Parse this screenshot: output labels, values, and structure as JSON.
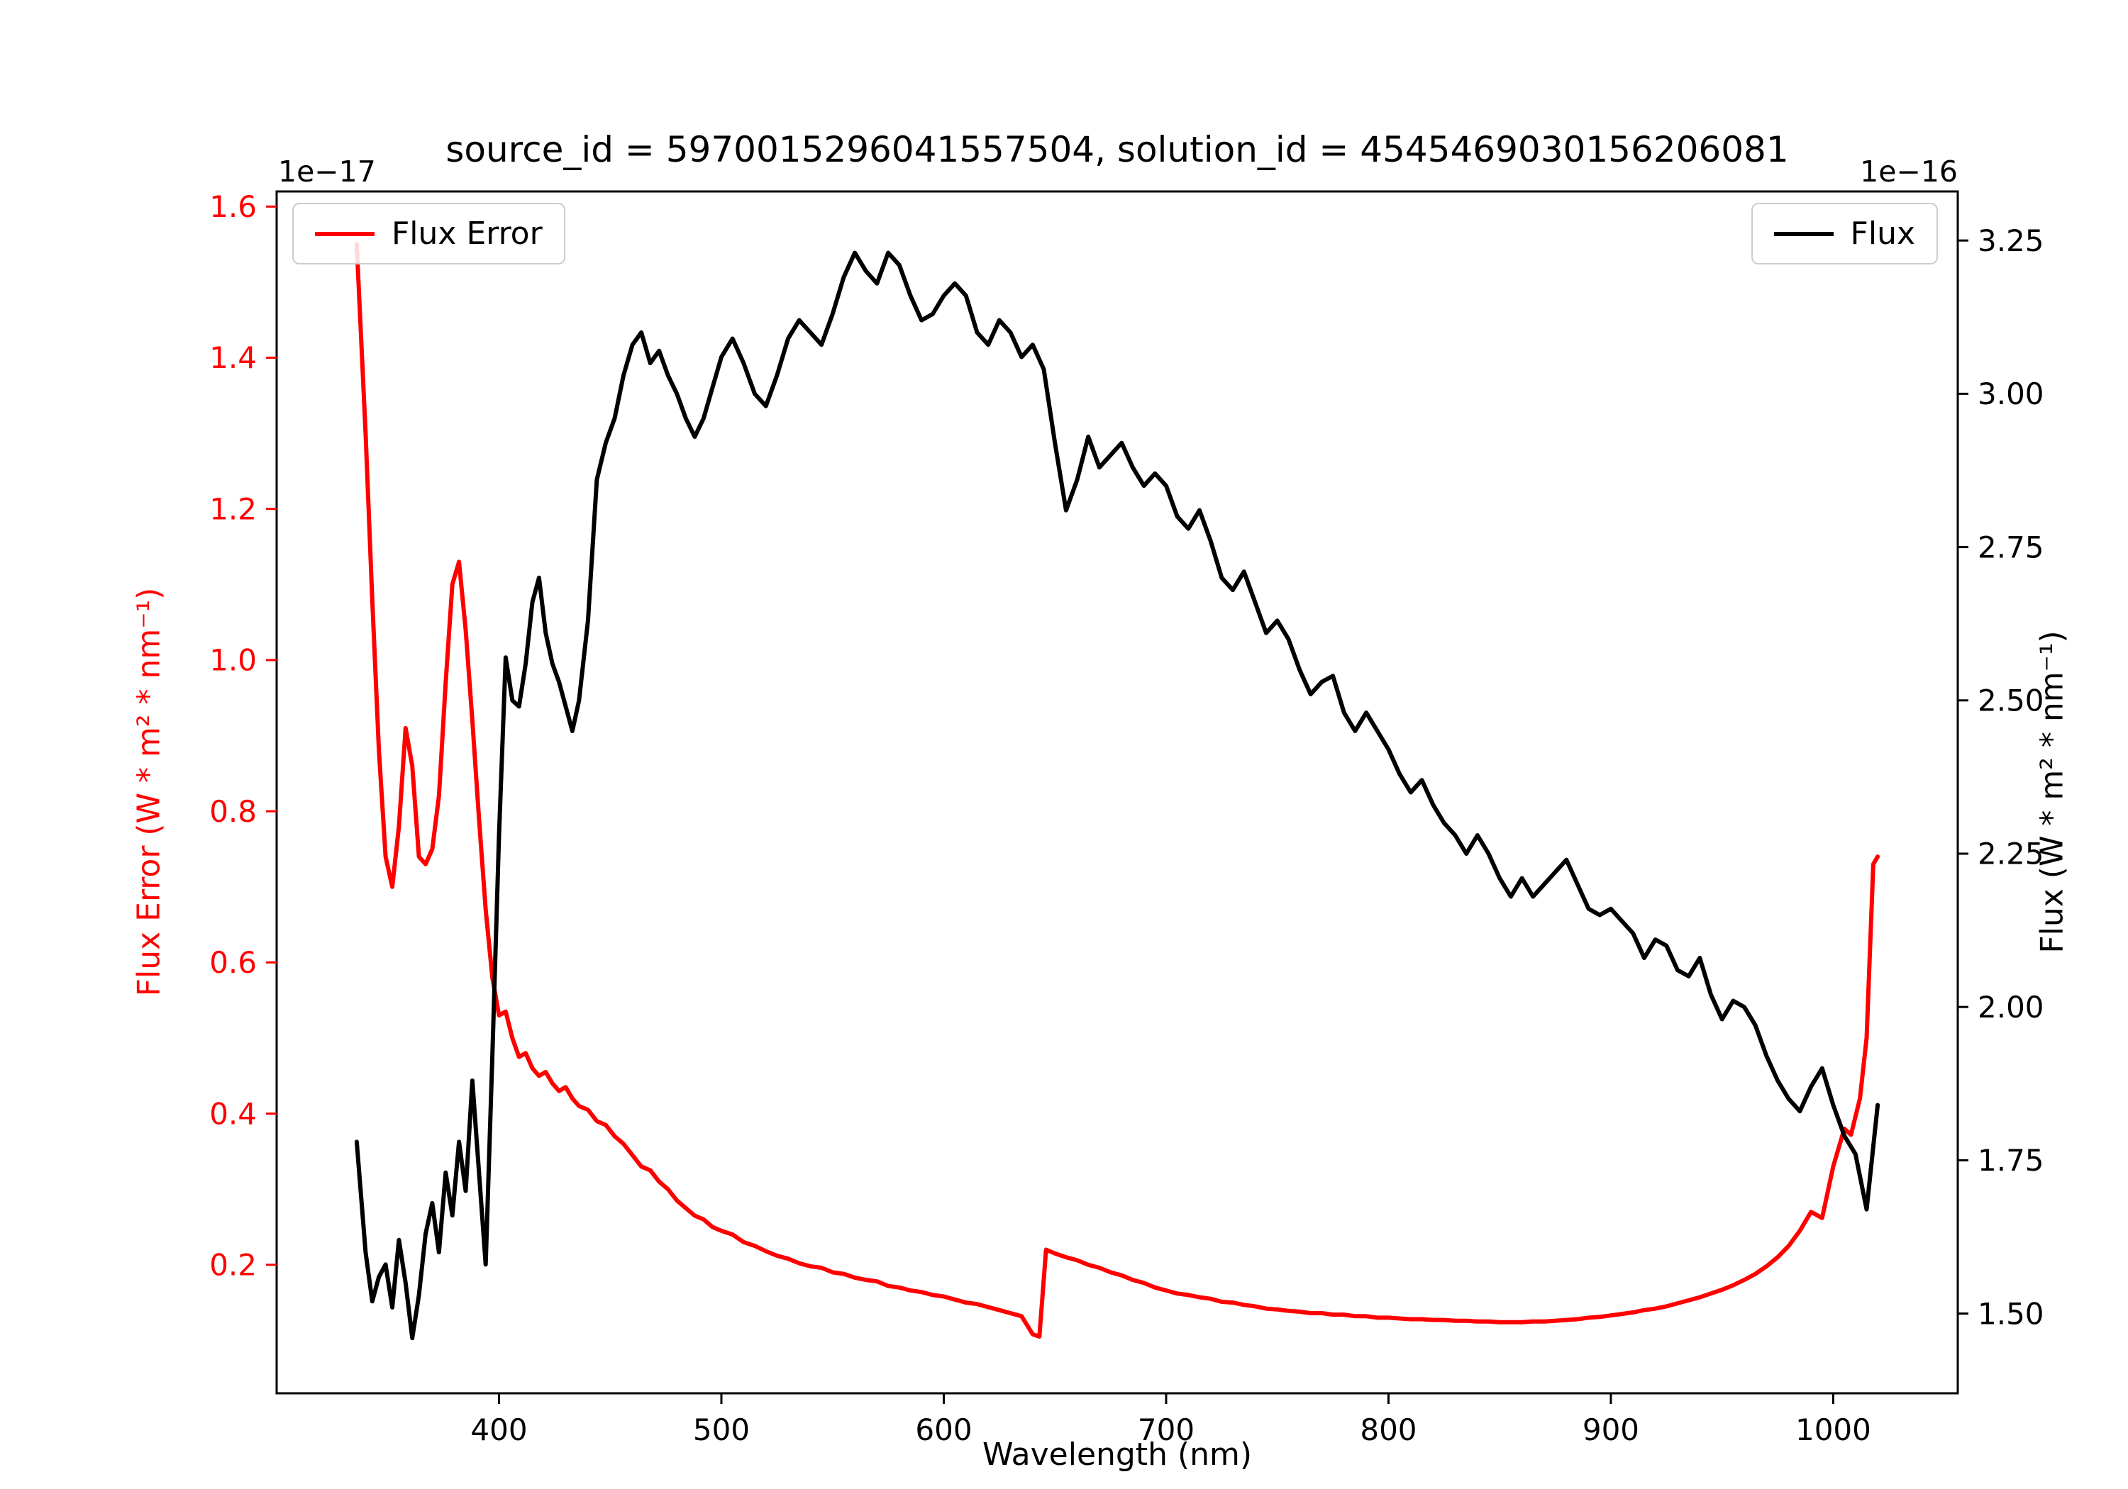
{
  "title": "source_id = 5970015296041557504, solution_id = 4545469030156206081",
  "xlabel": "Wavelength (nm)",
  "ylabel_left": "Flux Error (W * m² * nm⁻¹)",
  "ylabel_right": "Flux (W * m² * nm⁻¹)",
  "offset_left": "1e−17",
  "offset_right": "1e−16",
  "legend_left": {
    "label": "Flux Error",
    "color": "#ff0000"
  },
  "legend_right": {
    "label": "Flux",
    "color": "#000000"
  },
  "colors": {
    "flux_error": "#ff0000",
    "flux": "#000000",
    "spine": "#000000"
  },
  "chart_data": {
    "type": "line",
    "title": "source_id = 5970015296041557504, solution_id = 4545469030156206081",
    "xlabel": "Wavelength (nm)",
    "ylabel_left": "Flux Error (W * m² * nm⁻¹)  [×1e−17]",
    "ylabel_right": "Flux (W * m² * nm⁻¹)  [×1e−16]",
    "legend_position": "upper left / upper right",
    "grid": false,
    "xlim": [
      300,
      1056
    ],
    "ylim_left": [
      0.03,
      1.62
    ],
    "ylim_right": [
      1.37,
      3.33
    ],
    "x_ticks": [
      "400",
      "500",
      "600",
      "700",
      "800",
      "900",
      "1000"
    ],
    "y_ticks_left": [
      "0.2",
      "0.4",
      "0.6",
      "0.8",
      "1.0",
      "1.2",
      "1.4",
      "1.6"
    ],
    "y_ticks_right": [
      "1.50",
      "1.75",
      "2.00",
      "2.25",
      "2.50",
      "2.75",
      "3.00",
      "3.25"
    ],
    "series": [
      {
        "name": "Flux Error",
        "axis": "left",
        "color": "#ff0000",
        "units": "1e-17 W * m² * nm⁻¹",
        "x": [
          336,
          340,
          343,
          346,
          349,
          352,
          355,
          358,
          361,
          364,
          367,
          370,
          373,
          376,
          379,
          382,
          385,
          388,
          391,
          394,
          397,
          400,
          403,
          406,
          409,
          412,
          415,
          418,
          421,
          424,
          427,
          430,
          433,
          436,
          440,
          444,
          448,
          452,
          456,
          460,
          464,
          468,
          472,
          476,
          480,
          484,
          488,
          492,
          496,
          500,
          505,
          510,
          515,
          520,
          525,
          530,
          535,
          540,
          545,
          550,
          555,
          560,
          565,
          570,
          575,
          580,
          585,
          590,
          595,
          600,
          605,
          610,
          615,
          620,
          625,
          630,
          635,
          640,
          643,
          646,
          650,
          655,
          660,
          665,
          670,
          675,
          680,
          685,
          690,
          695,
          700,
          705,
          710,
          715,
          720,
          725,
          730,
          735,
          740,
          745,
          750,
          755,
          760,
          765,
          770,
          775,
          780,
          785,
          790,
          795,
          800,
          805,
          810,
          815,
          820,
          825,
          830,
          835,
          840,
          845,
          850,
          855,
          860,
          865,
          870,
          875,
          880,
          885,
          890,
          895,
          900,
          905,
          910,
          915,
          920,
          925,
          930,
          935,
          940,
          945,
          950,
          955,
          960,
          965,
          970,
          975,
          980,
          985,
          990,
          995,
          1000,
          1005,
          1008,
          1012,
          1015,
          1018,
          1020
        ],
        "y": [
          1.55,
          1.3,
          1.08,
          0.88,
          0.74,
          0.7,
          0.78,
          0.91,
          0.86,
          0.74,
          0.73,
          0.75,
          0.82,
          0.97,
          1.1,
          1.13,
          1.04,
          0.92,
          0.79,
          0.67,
          0.58,
          0.53,
          0.535,
          0.5,
          0.475,
          0.48,
          0.46,
          0.45,
          0.455,
          0.44,
          0.43,
          0.435,
          0.42,
          0.41,
          0.405,
          0.39,
          0.385,
          0.37,
          0.36,
          0.345,
          0.33,
          0.325,
          0.31,
          0.3,
          0.285,
          0.275,
          0.265,
          0.26,
          0.25,
          0.245,
          0.24,
          0.23,
          0.225,
          0.218,
          0.212,
          0.208,
          0.202,
          0.198,
          0.196,
          0.19,
          0.188,
          0.183,
          0.18,
          0.178,
          0.172,
          0.17,
          0.166,
          0.164,
          0.16,
          0.158,
          0.154,
          0.15,
          0.148,
          0.144,
          0.14,
          0.136,
          0.132,
          0.108,
          0.105,
          0.22,
          0.215,
          0.21,
          0.206,
          0.2,
          0.196,
          0.19,
          0.186,
          0.18,
          0.176,
          0.17,
          0.166,
          0.162,
          0.16,
          0.157,
          0.155,
          0.151,
          0.15,
          0.147,
          0.145,
          0.142,
          0.141,
          0.139,
          0.138,
          0.136,
          0.136,
          0.134,
          0.134,
          0.132,
          0.132,
          0.13,
          0.13,
          0.129,
          0.128,
          0.128,
          0.127,
          0.127,
          0.126,
          0.126,
          0.125,
          0.125,
          0.124,
          0.124,
          0.124,
          0.125,
          0.125,
          0.126,
          0.127,
          0.128,
          0.13,
          0.131,
          0.133,
          0.135,
          0.137,
          0.14,
          0.142,
          0.145,
          0.149,
          0.153,
          0.157,
          0.162,
          0.167,
          0.173,
          0.18,
          0.188,
          0.198,
          0.21,
          0.225,
          0.245,
          0.27,
          0.262,
          0.33,
          0.38,
          0.372,
          0.42,
          0.5,
          0.73,
          0.74
        ]
      },
      {
        "name": "Flux",
        "axis": "right",
        "color": "#000000",
        "units": "1e-16 W * m² * nm⁻¹",
        "x": [
          336,
          340,
          343,
          346,
          349,
          352,
          355,
          358,
          361,
          364,
          367,
          370,
          373,
          376,
          379,
          382,
          385,
          388,
          391,
          394,
          397,
          400,
          403,
          406,
          409,
          412,
          415,
          418,
          421,
          424,
          427,
          430,
          433,
          436,
          440,
          444,
          448,
          452,
          456,
          460,
          464,
          468,
          472,
          476,
          480,
          484,
          488,
          492,
          496,
          500,
          505,
          510,
          515,
          520,
          525,
          530,
          535,
          540,
          545,
          550,
          555,
          560,
          565,
          570,
          575,
          580,
          585,
          590,
          595,
          600,
          605,
          610,
          615,
          620,
          625,
          630,
          635,
          640,
          645,
          650,
          655,
          660,
          665,
          670,
          675,
          680,
          685,
          690,
          695,
          700,
          705,
          710,
          715,
          720,
          725,
          730,
          735,
          740,
          745,
          750,
          755,
          760,
          765,
          770,
          775,
          780,
          785,
          790,
          795,
          800,
          805,
          810,
          815,
          820,
          825,
          830,
          835,
          840,
          845,
          850,
          855,
          860,
          865,
          870,
          875,
          880,
          885,
          890,
          895,
          900,
          905,
          910,
          915,
          920,
          925,
          930,
          935,
          940,
          945,
          950,
          955,
          960,
          965,
          970,
          975,
          980,
          985,
          990,
          995,
          1000,
          1005,
          1010,
          1015,
          1020
        ],
        "y": [
          1.78,
          1.6,
          1.52,
          1.56,
          1.58,
          1.51,
          1.62,
          1.55,
          1.46,
          1.53,
          1.63,
          1.68,
          1.6,
          1.73,
          1.66,
          1.78,
          1.7,
          1.88,
          1.73,
          1.58,
          1.92,
          2.28,
          2.57,
          2.5,
          2.49,
          2.56,
          2.66,
          2.7,
          2.61,
          2.56,
          2.53,
          2.49,
          2.45,
          2.5,
          2.63,
          2.86,
          2.92,
          2.96,
          3.03,
          3.08,
          3.1,
          3.05,
          3.07,
          3.03,
          3.0,
          2.96,
          2.93,
          2.96,
          3.01,
          3.06,
          3.09,
          3.05,
          3.0,
          2.98,
          3.03,
          3.09,
          3.12,
          3.1,
          3.08,
          3.13,
          3.19,
          3.23,
          3.2,
          3.18,
          3.23,
          3.21,
          3.16,
          3.12,
          3.13,
          3.16,
          3.18,
          3.16,
          3.1,
          3.08,
          3.12,
          3.1,
          3.06,
          3.08,
          3.04,
          2.92,
          2.81,
          2.86,
          2.93,
          2.88,
          2.9,
          2.92,
          2.88,
          2.85,
          2.87,
          2.85,
          2.8,
          2.78,
          2.81,
          2.76,
          2.7,
          2.68,
          2.71,
          2.66,
          2.61,
          2.63,
          2.6,
          2.55,
          2.51,
          2.53,
          2.54,
          2.48,
          2.45,
          2.48,
          2.45,
          2.42,
          2.38,
          2.35,
          2.37,
          2.33,
          2.3,
          2.28,
          2.25,
          2.28,
          2.25,
          2.21,
          2.18,
          2.21,
          2.18,
          2.2,
          2.22,
          2.24,
          2.2,
          2.16,
          2.15,
          2.16,
          2.14,
          2.12,
          2.08,
          2.11,
          2.1,
          2.06,
          2.05,
          2.08,
          2.02,
          1.98,
          2.01,
          2.0,
          1.97,
          1.92,
          1.88,
          1.85,
          1.83,
          1.87,
          1.9,
          1.84,
          1.79,
          1.76,
          1.67,
          1.84
        ]
      }
    ]
  }
}
